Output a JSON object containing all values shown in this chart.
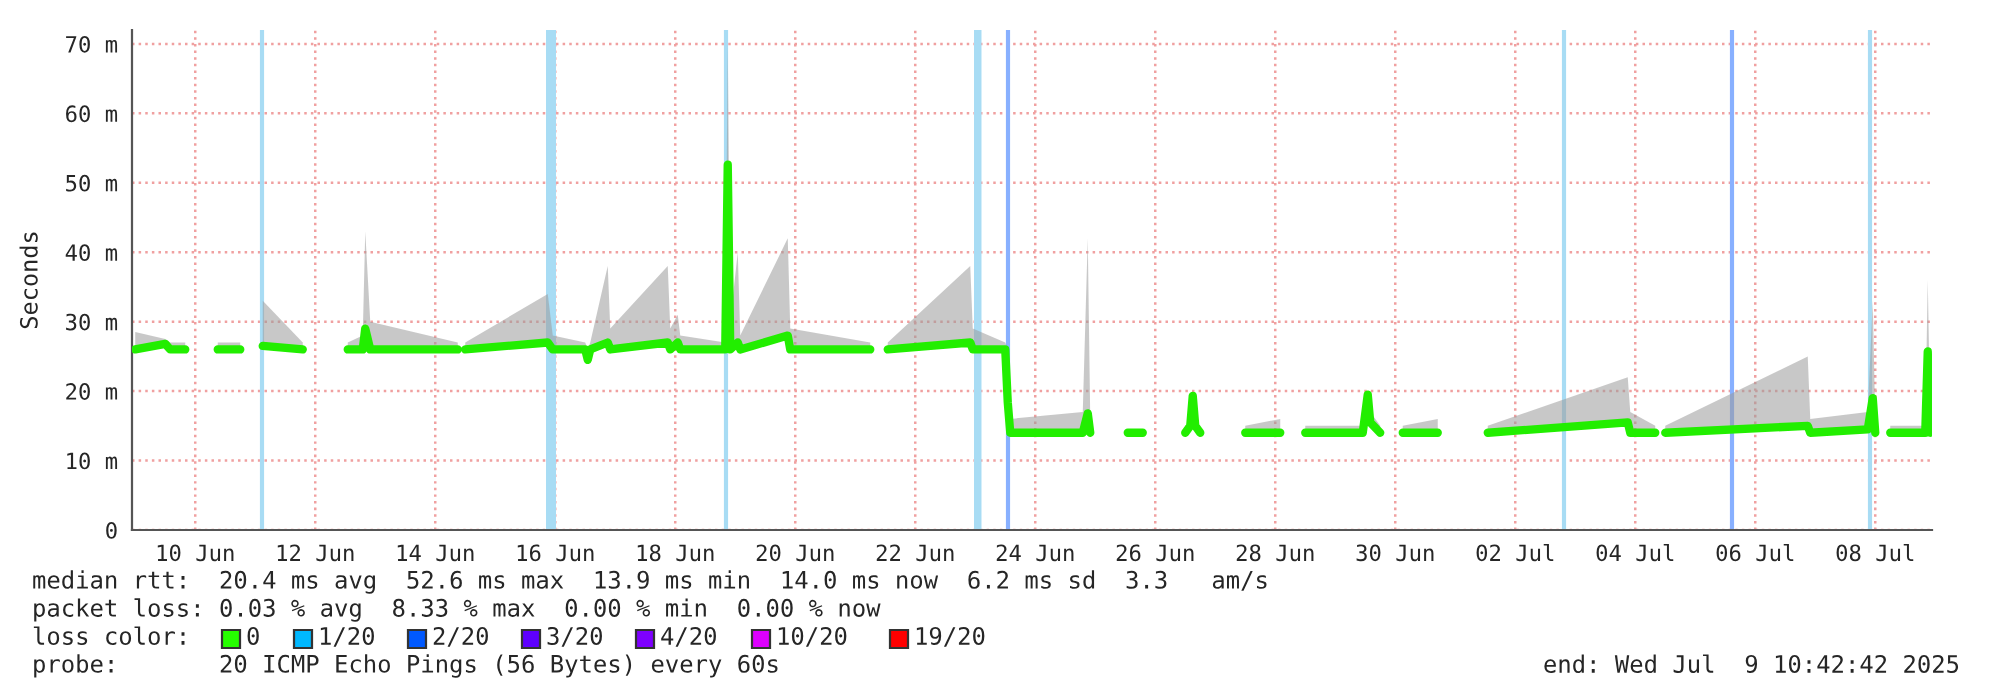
{
  "chart_data": {
    "type": "line",
    "ylabel": "Seconds",
    "xlim": [
      "2025-06-09T10:42",
      "2025-07-09T10:42"
    ],
    "xticks": [
      {
        "value": "2025-06-10T12:00",
        "label": "10 Jun"
      },
      {
        "value": "2025-06-12T12:00",
        "label": "12 Jun"
      },
      {
        "value": "2025-06-14T12:00",
        "label": "14 Jun"
      },
      {
        "value": "2025-06-16T12:00",
        "label": "16 Jun"
      },
      {
        "value": "2025-06-18T12:00",
        "label": "18 Jun"
      },
      {
        "value": "2025-06-20T12:00",
        "label": "20 Jun"
      },
      {
        "value": "2025-06-22T12:00",
        "label": "22 Jun"
      },
      {
        "value": "2025-06-24T12:00",
        "label": "24 Jun"
      },
      {
        "value": "2025-06-26T12:00",
        "label": "26 Jun"
      },
      {
        "value": "2025-06-28T12:00",
        "label": "28 Jun"
      },
      {
        "value": "2025-06-30T12:00",
        "label": "30 Jun"
      },
      {
        "value": "2025-07-02T12:00",
        "label": "02 Jul"
      },
      {
        "value": "2025-07-04T12:00",
        "label": "04 Jul"
      },
      {
        "value": "2025-07-06T12:00",
        "label": "06 Jul"
      },
      {
        "value": "2025-07-08T12:00",
        "label": "08 Jul"
      }
    ],
    "ylim": [
      0,
      72
    ],
    "yticks": [
      0,
      {
        "value": 10,
        "label": "10 m"
      },
      {
        "value": 20,
        "label": "20 m"
      },
      {
        "value": 30,
        "label": "30 m"
      },
      {
        "value": 40,
        "label": "40 m"
      },
      {
        "value": 50,
        "label": "50 m"
      },
      {
        "value": 60,
        "label": "60 m"
      },
      {
        "value": 70,
        "label": "70 m"
      }
    ],
    "grid": true,
    "line_style": "solid",
    "series": [
      {
        "color": "#22ee00",
        "x": [
          "2025-06-09T12:00",
          "2025-06-10T00:00",
          "2025-06-10T02:00",
          "2025-06-10T08:00",
          "2025-06-10T14:00",
          "2025-06-10T21:00",
          "2025-06-11T06:00",
          "2025-06-11T10:00",
          "2025-06-11T15:00",
          "2025-06-12T07:00",
          "2025-06-12T16:00",
          "2025-06-13T01:00",
          "2025-06-13T07:00",
          "2025-06-13T08:00",
          "2025-06-13T10:00",
          "2025-06-14T21:00",
          "2025-06-14T22:00",
          "2025-06-15T00:00",
          "2025-06-16T09:00",
          "2025-06-16T11:00",
          "2025-06-17T00:00",
          "2025-06-17T01:00",
          "2025-06-17T02:00",
          "2025-06-17T09:00",
          "2025-06-17T10:00",
          "2025-06-18T09:00",
          "2025-06-18T10:00",
          "2025-06-18T13:00",
          "2025-06-18T14:00",
          "2025-06-19T08:00",
          "2025-06-19T09:00",
          "2025-06-19T10:00",
          "2025-06-19T13:00",
          "2025-06-19T14:00",
          "2025-06-20T09:00",
          "2025-06-20T10:00",
          "2025-06-21T18:00",
          "2025-06-21T21:00",
          "2025-06-22T01:00",
          "2025-06-23T10:00",
          "2025-06-23T11:00",
          "2025-06-24T00:00",
          "2025-06-24T01:00",
          "2025-06-24T02:00",
          "2025-06-25T07:00",
          "2025-06-25T09:00",
          "2025-06-25T10:00",
          "2025-06-25T18:00",
          "2025-06-26T01:00",
          "2025-06-26T07:00",
          "2025-06-26T12:00",
          "2025-06-27T00:00",
          "2025-06-27T02:00",
          "2025-06-27T03:00",
          "2025-06-27T04:00",
          "2025-06-27T06:00",
          "2025-06-27T12:00",
          "2025-06-28T00:00",
          "2025-06-28T14:00",
          "2025-06-28T19:00",
          "2025-06-29T00:00",
          "2025-06-29T23:00",
          "2025-06-30T01:00",
          "2025-06-30T02:00",
          "2025-06-30T06:00",
          "2025-06-30T10:00",
          "2025-06-30T15:00",
          "2025-07-01T05:00",
          "2025-07-01T12:00",
          "2025-07-02T01:00",
          "2025-07-04T09:00",
          "2025-07-04T10:00",
          "2025-07-04T20:00",
          "2025-07-04T22:00",
          "2025-07-05T00:00",
          "2025-07-07T09:00",
          "2025-07-07T10:00",
          "2025-07-08T09:00",
          "2025-07-08T11:00",
          "2025-07-08T12:00",
          "2025-07-08T15:00",
          "2025-07-08T18:00",
          "2025-07-09T08:00",
          "2025-07-09T09:00",
          "2025-07-09T10:00"
        ],
        "values": [
          26,
          26.8,
          26,
          26,
          null,
          26,
          26,
          null,
          26.5,
          26,
          null,
          26,
          26,
          29,
          26,
          26,
          null,
          26,
          27,
          26,
          26,
          24.5,
          26,
          27,
          26,
          27,
          26,
          27,
          26,
          26,
          52.6,
          26,
          27,
          26,
          28,
          26,
          26,
          null,
          26,
          27,
          26,
          26,
          18.4,
          14,
          14,
          16.8,
          14,
          null,
          14,
          14,
          null,
          14,
          15,
          19.3,
          15,
          14,
          null,
          14,
          14,
          null,
          14,
          14,
          19.5,
          15.5,
          14,
          null,
          14,
          14,
          null,
          14,
          15.5,
          14,
          14,
          null,
          14,
          15,
          14,
          14.5,
          19,
          14,
          null,
          14,
          14,
          25.7,
          14
        ],
        "lower": [
          26,
          26.8,
          26,
          26,
          null,
          26,
          26,
          null,
          26.5,
          26,
          null,
          26,
          26,
          29,
          26,
          26,
          null,
          26,
          27,
          26,
          26,
          24.5,
          26,
          27,
          26,
          27,
          26,
          27,
          26,
          26,
          52.6,
          26,
          27,
          26,
          28,
          26,
          26,
          null,
          26,
          27,
          26,
          26,
          18.4,
          14,
          14,
          16.8,
          14,
          null,
          null,
          null,
          null,
          14,
          15,
          19.3,
          15,
          14,
          null,
          14,
          14,
          null,
          14,
          14,
          19.5,
          15.5,
          14,
          null,
          14,
          14,
          null,
          14,
          15.5,
          14,
          14,
          null,
          14,
          15,
          14,
          14.5,
          19,
          14,
          null,
          14,
          14,
          25.7,
          14
        ],
        "upper": [
          28.5,
          27.5,
          27,
          27,
          null,
          27,
          27,
          null,
          33,
          27,
          null,
          27,
          28,
          43,
          30,
          27,
          null,
          27,
          34,
          28,
          27,
          26,
          27,
          38,
          29,
          38,
          29,
          31,
          28,
          27,
          70,
          30,
          40,
          28,
          42,
          29,
          27,
          null,
          27,
          38,
          29,
          27,
          26,
          16,
          17,
          42,
          16,
          null,
          null,
          null,
          null,
          15,
          16,
          20,
          16,
          15,
          null,
          15,
          16,
          null,
          15,
          15,
          20,
          17,
          15,
          null,
          15,
          16,
          null,
          15,
          22,
          17,
          15,
          null,
          15,
          25,
          16,
          17,
          33,
          16,
          null,
          15,
          15,
          36,
          16
        ]
      }
    ],
    "ref_lines": [
      {
        "axis": "x",
        "value": "2025-06-11T14:42",
        "color": "#a8dcf4"
      },
      {
        "axis": "x",
        "value": "2025-06-19T08:18",
        "color": "#a8dcf4"
      },
      {
        "axis": "x",
        "value": "2025-06-24T01:06",
        "color": "#88b0ff"
      },
      {
        "axis": "x",
        "value": "2025-07-03T07:30",
        "color": "#a8dcf4"
      },
      {
        "axis": "x",
        "value": "2025-07-06T02:42",
        "color": "#88b0ff"
      },
      {
        "axis": "x",
        "value": "2025-07-08T09:54",
        "color": "#a8dcf4"
      }
    ],
    "bands": [
      {
        "axis": "x",
        "from": "2025-06-16T08:18",
        "to": "2025-06-16T12:18",
        "color": "#a8dcf4"
      },
      {
        "axis": "x",
        "from": "2025-06-23T11:30",
        "to": "2025-06-23T14:30",
        "color": "#a8dcf4"
      }
    ],
    "annotations": [
      "median rtt:  20.4 ms avg  52.6 ms max  13.9 ms min  14.0 ms now  6.2 ms sd  3.3   am/s",
      "packet loss: 0.03 % avg  8.33 % max  0.00 % min  0.00 % now",
      "loss color:",
      "0",
      "1/20",
      "2/20",
      "3/20",
      "4/20",
      "10/20",
      "19/20",
      "probe:       20 ICMP Echo Pings (56 Bytes) every 60s",
      "end: Wed Jul  9 10:42:42 2025"
    ]
  }
}
